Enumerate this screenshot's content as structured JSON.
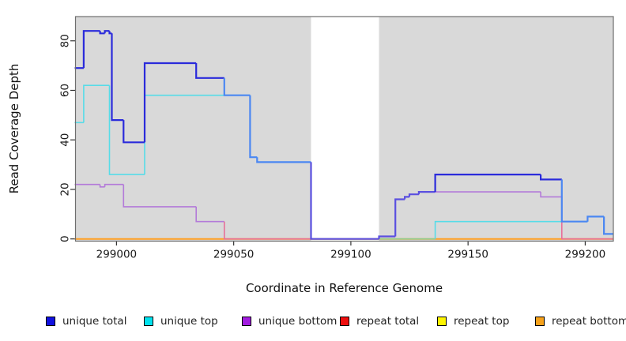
{
  "chart_data": {
    "type": "step-line",
    "xlabel": "Coordinate in Reference Genome",
    "ylabel": "Read Coverage Depth",
    "xlim": [
      298982.5,
      299212
    ],
    "ylim": [
      -0.9,
      89.8
    ],
    "xticks": {
      "values": [
        299000,
        299050,
        299100,
        299150,
        299200
      ],
      "labels": [
        "299000",
        "299050",
        "299100",
        "299150",
        "299200"
      ]
    },
    "yticks": {
      "values": [
        0,
        20,
        40,
        60,
        80
      ],
      "labels": [
        "0",
        "20",
        "40",
        "60",
        "80"
      ]
    },
    "page_bg": "#ffffff",
    "plot_bg": "#d9d9d9",
    "border_color": "#6e6e6e",
    "tick_color": "#333333",
    "tick_label_color": "#1a1a1a",
    "uncovered_band": {
      "from": 299083,
      "to": 299112,
      "color": "#ffffff"
    },
    "draw_order": [
      "repeat total",
      "repeat top",
      "repeat bottom",
      "unique top",
      "unique bottom",
      "unique total"
    ],
    "series": [
      {
        "name": "unique total",
        "legend_color": "#1111e0",
        "line_color": "#2b2bdb",
        "eq_bottom_color": "#5b50e0",
        "eq_top_color": "#4b87f2",
        "width": 2.2,
        "points": [
          [
            298982,
            69
          ],
          [
            298986,
            84
          ],
          [
            298993,
            83
          ],
          [
            298995,
            84
          ],
          [
            298997,
            83
          ],
          [
            298998,
            48
          ],
          [
            299003,
            39
          ],
          [
            299012,
            71
          ],
          [
            299034,
            65
          ],
          [
            299046,
            58
          ],
          [
            299057,
            33
          ],
          [
            299060,
            31
          ],
          [
            299083,
            0
          ],
          [
            299112,
            1
          ],
          [
            299119,
            16
          ],
          [
            299123,
            17
          ],
          [
            299125,
            18
          ],
          [
            299129,
            19
          ],
          [
            299136,
            26
          ],
          [
            299181,
            24
          ],
          [
            299190,
            7
          ],
          [
            299201,
            9
          ],
          [
            299208,
            2
          ]
        ]
      },
      {
        "name": "unique top",
        "legend_color": "#00e2ee",
        "line_color": "#57dce8",
        "zero_color": "#8bce91",
        "width": 1.6,
        "points": [
          [
            298982,
            47
          ],
          [
            298986,
            62
          ],
          [
            298997,
            26
          ],
          [
            299012,
            58
          ],
          [
            299057,
            33
          ],
          [
            299060,
            31
          ],
          [
            299083,
            0
          ],
          [
            299136,
            7
          ],
          [
            299201,
            9
          ],
          [
            299208,
            2
          ]
        ]
      },
      {
        "name": "unique bottom",
        "legend_color": "#a21ce0",
        "line_color": "#b37ad9",
        "zero_color": "#e86f98",
        "width": 1.6,
        "points": [
          [
            298982,
            22
          ],
          [
            298993,
            21
          ],
          [
            298995,
            22
          ],
          [
            299003,
            13
          ],
          [
            299034,
            7
          ],
          [
            299046,
            0
          ],
          [
            299112,
            1
          ],
          [
            299119,
            16
          ],
          [
            299123,
            17
          ],
          [
            299125,
            18
          ],
          [
            299129,
            19
          ],
          [
            299181,
            17
          ],
          [
            299190,
            0
          ]
        ]
      },
      {
        "name": "repeat total",
        "legend_color": "#ee0f0f",
        "line_color": "#e01818",
        "width": 1.4,
        "points": [
          [
            298982,
            0
          ]
        ]
      },
      {
        "name": "repeat top",
        "legend_color": "#fdf400",
        "line_color": "#f0e030",
        "width": 1.4,
        "points": [
          [
            298982,
            0
          ]
        ]
      },
      {
        "name": "repeat bottom",
        "legend_color": "#f6a11b",
        "line_color": "#ff9f22",
        "width": 2.0,
        "points": [
          [
            298982,
            0
          ]
        ]
      }
    ]
  }
}
